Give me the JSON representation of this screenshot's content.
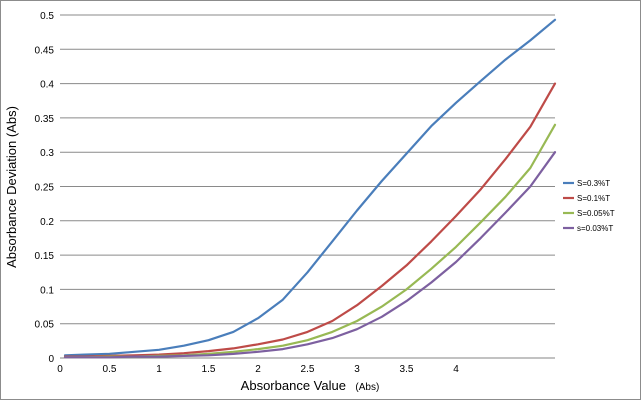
{
  "chart_data": {
    "type": "line",
    "title": "",
    "xlabel_main": "Absorbance Value",
    "xlabel_unit": "(Abs)",
    "ylabel": "Absorbance Deviation  (Abs)",
    "xlim": [
      0,
      5
    ],
    "ylim": [
      0,
      0.5
    ],
    "x_ticks": [
      0,
      0.5,
      1,
      1.5,
      2,
      2.5,
      3,
      3.5,
      4
    ],
    "x_tick_labels": [
      "0",
      "0.5",
      "1",
      "1.5",
      "2",
      "2.5",
      "3",
      "3.5",
      "4"
    ],
    "y_ticks": [
      0,
      0.05,
      0.1,
      0.15,
      0.2,
      0.25,
      0.3,
      0.35,
      0.4,
      0.45,
      0.5
    ],
    "y_tick_labels": [
      "0",
      "0.05",
      "0.1",
      "0.15",
      "0.2",
      "0.25",
      "0.3",
      "0.35",
      "0.4",
      "0.45",
      "0.5"
    ],
    "grid": "horizontal",
    "legend_position": "right",
    "x": [
      0.05,
      0.25,
      0.5,
      0.75,
      1.0,
      1.25,
      1.5,
      1.75,
      2.0,
      2.25,
      2.5,
      2.75,
      3.0,
      3.25,
      3.5,
      3.75,
      4.0,
      4.25,
      4.5,
      4.75,
      5.0
    ],
    "series": [
      {
        "name": "S=0.3%T",
        "color": "#4a7ebb",
        "values": [
          0.004,
          0.005,
          0.006,
          0.009,
          0.012,
          0.018,
          0.026,
          0.038,
          0.058,
          0.085,
          0.125,
          0.17,
          0.215,
          0.258,
          0.298,
          0.338,
          0.372,
          0.404,
          0.435,
          0.463,
          0.493
        ]
      },
      {
        "name": "S=0.1%T",
        "color": "#be4b48",
        "values": [
          0.002,
          0.002,
          0.003,
          0.004,
          0.005,
          0.007,
          0.01,
          0.014,
          0.02,
          0.027,
          0.038,
          0.054,
          0.077,
          0.105,
          0.135,
          0.17,
          0.207,
          0.246,
          0.29,
          0.337,
          0.4
        ]
      },
      {
        "name": "S=0.05%T",
        "color": "#98b954",
        "values": [
          0.001,
          0.001,
          0.002,
          0.002,
          0.003,
          0.004,
          0.006,
          0.009,
          0.013,
          0.018,
          0.026,
          0.038,
          0.054,
          0.075,
          0.1,
          0.13,
          0.162,
          0.198,
          0.235,
          0.277,
          0.34
        ]
      },
      {
        "name": "s=0.03%T",
        "color": "#7d60a0",
        "values": [
          0.001,
          0.001,
          0.001,
          0.002,
          0.002,
          0.003,
          0.004,
          0.006,
          0.009,
          0.013,
          0.02,
          0.029,
          0.042,
          0.06,
          0.083,
          0.11,
          0.14,
          0.175,
          0.212,
          0.25,
          0.3
        ]
      }
    ]
  }
}
